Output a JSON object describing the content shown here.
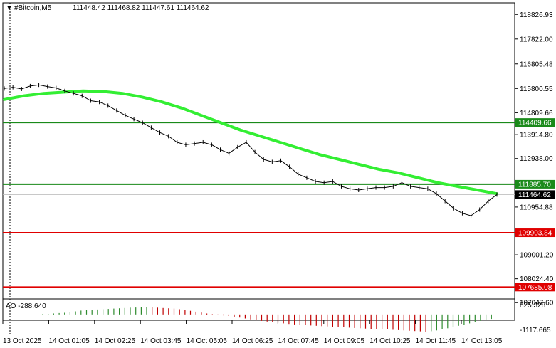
{
  "header": {
    "symbol": "#Bitcoin,M5",
    "ohlc": "111448.42 111468.82 111447.61 111464.62"
  },
  "indicator": {
    "label": "AO -288.640",
    "axis_top": "825.328",
    "axis_bottom": "-1117.665"
  },
  "colors": {
    "ma": "#33ee33",
    "support": "#e00000",
    "resistance": "#1a8a1a",
    "ao_up": "#2e8b2e",
    "ao_down": "#c00000",
    "price_tag": "#000000"
  },
  "chart_data": {
    "type": "line",
    "title": "#Bitcoin,M5",
    "ylim": [
      107200,
      119300
    ],
    "y_ticks": [
      "118826.93",
      "117822.00",
      "116805.48",
      "115800.55",
      "114809.66",
      "113914.80",
      "112938.00",
      "110954.88",
      "109001.20",
      "108024.40",
      "107047.60"
    ],
    "x_ticks": [
      "13 Oct 2025",
      "14 Oct 01:05",
      "14 Oct 02:25",
      "14 Oct 03:45",
      "14 Oct 05:05",
      "14 Oct 06:25",
      "14 Oct 07:45",
      "14 Oct 09:05",
      "14 Oct 10:25",
      "14 Oct 11:45",
      "14 Oct 13:05"
    ],
    "levels": [
      {
        "label": "114409.66",
        "value": 114409.66,
        "kind": "resistance"
      },
      {
        "label": "111885.70",
        "value": 111885.7,
        "kind": "resistance"
      },
      {
        "label": "109903.84",
        "value": 109903.84,
        "kind": "support"
      },
      {
        "label": "107685.08",
        "value": 107685.08,
        "kind": "support"
      }
    ],
    "current_price": {
      "label": "111464.62",
      "value": 111464.62
    },
    "price_series": {
      "name": "",
      "values": [
        115800,
        115850,
        115780,
        115900,
        115950,
        115880,
        115820,
        115700,
        115600,
        115500,
        115300,
        115250,
        115100,
        114900,
        114700,
        114550,
        114400,
        114200,
        114000,
        113850,
        113600,
        113500,
        113550,
        113600,
        113500,
        113300,
        113150,
        113400,
        113600,
        113200,
        112900,
        112800,
        112850,
        112600,
        112300,
        112150,
        112000,
        111950,
        112000,
        111800,
        111700,
        111650,
        111700,
        111750,
        111750,
        111800,
        111950,
        111800,
        111750,
        111700,
        111500,
        111200,
        110900,
        110700,
        110600,
        110850,
        111200,
        111464.62
      ]
    },
    "ma_series": {
      "name": "",
      "values": [
        115350,
        115500,
        115600,
        115650,
        115700,
        115680,
        115600,
        115450,
        115250,
        115000,
        114700,
        114400,
        114100,
        113850,
        113600,
        113350,
        113100,
        112900,
        112700,
        112500,
        112350,
        112150,
        111950,
        111800,
        111650,
        111500
      ]
    },
    "ao_values": [
      30,
      35,
      60,
      90,
      110,
      160,
      200,
      250,
      280,
      300,
      320,
      340,
      360,
      380,
      400,
      420,
      440,
      450,
      460,
      470,
      460,
      440,
      420,
      400,
      380,
      340,
      300,
      240,
      180,
      120,
      60,
      20,
      -20,
      -60,
      -100,
      -150,
      -200,
      -260,
      -320,
      -380,
      -420,
      -460,
      -500,
      -540,
      -580,
      -620,
      -650,
      -680,
      -700,
      -720,
      -740,
      -760,
      -780,
      -800,
      -820,
      -840,
      -860,
      -880,
      -900,
      -920,
      -940,
      -950,
      -960,
      -980,
      -1000,
      -1020,
      -1040,
      -1060,
      -1080,
      -1100,
      -1117,
      -1090,
      -1040,
      -980,
      -900,
      -820,
      -740,
      -660,
      -580,
      -500,
      -420,
      -350,
      -288.64
    ]
  }
}
